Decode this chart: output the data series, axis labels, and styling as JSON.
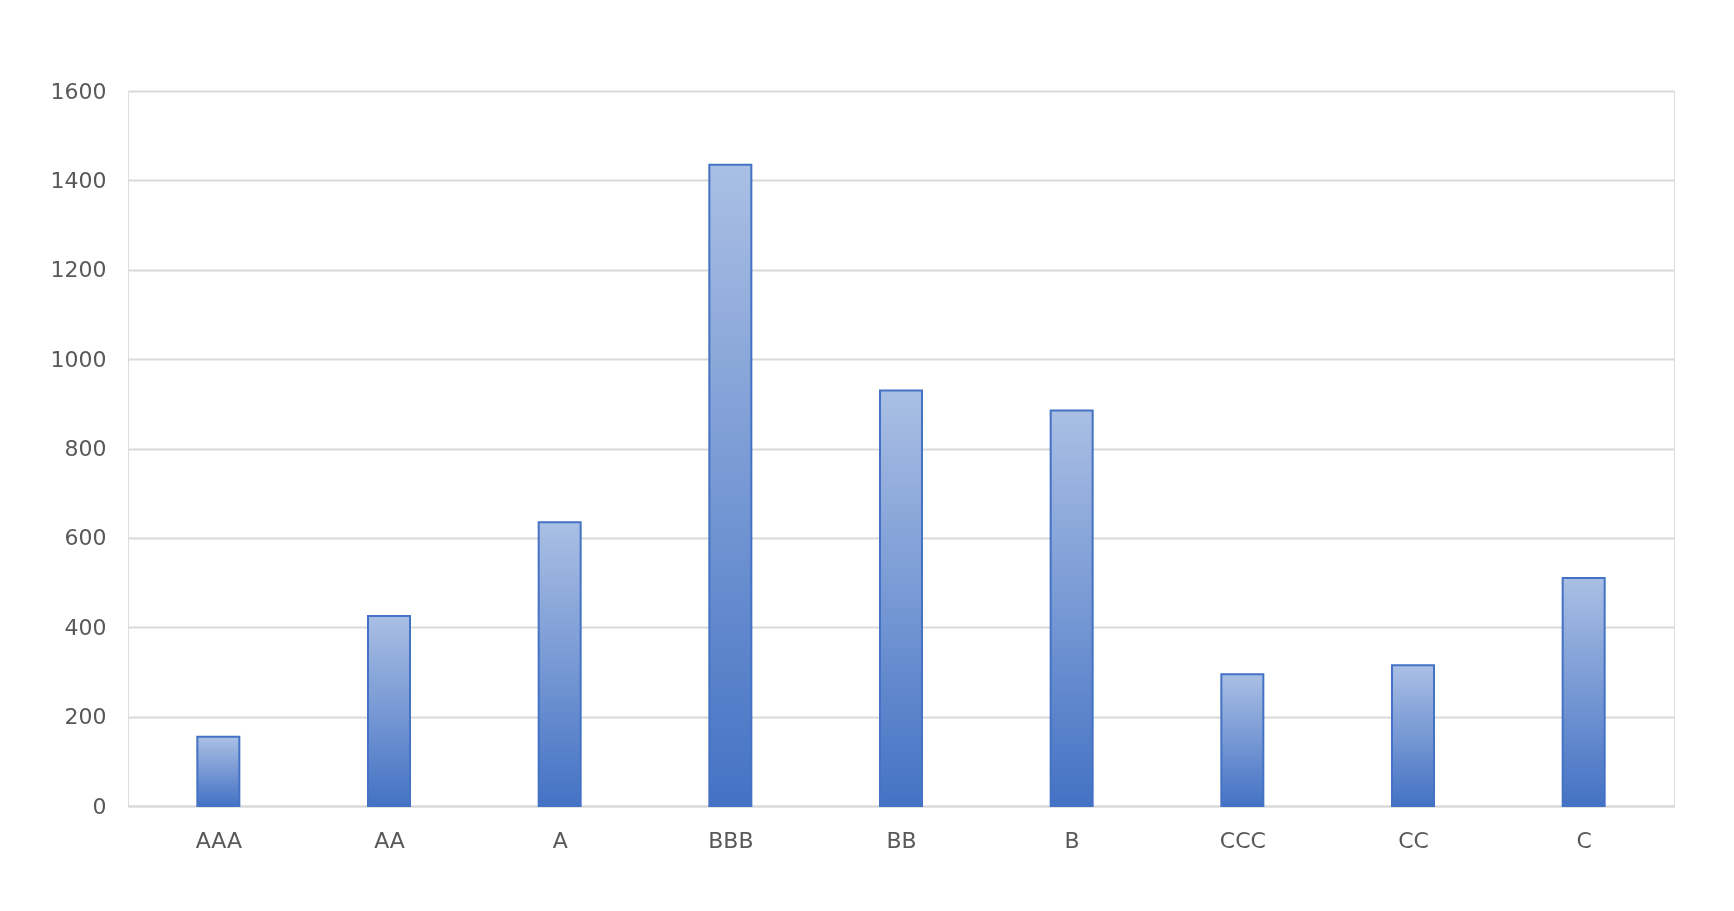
{
  "chart_data": {
    "type": "bar",
    "categories": [
      "AAA",
      "AA",
      "A",
      "BBB",
      "BB",
      "B",
      "CCC",
      "CC",
      "C"
    ],
    "values": [
      155,
      425,
      635,
      1435,
      930,
      885,
      295,
      315,
      510
    ],
    "color": "#4472c4",
    "ylim": [
      0,
      1600
    ],
    "yticks": [
      0,
      200,
      400,
      600,
      800,
      1000,
      1200,
      1400,
      1600
    ],
    "grid": "y"
  }
}
